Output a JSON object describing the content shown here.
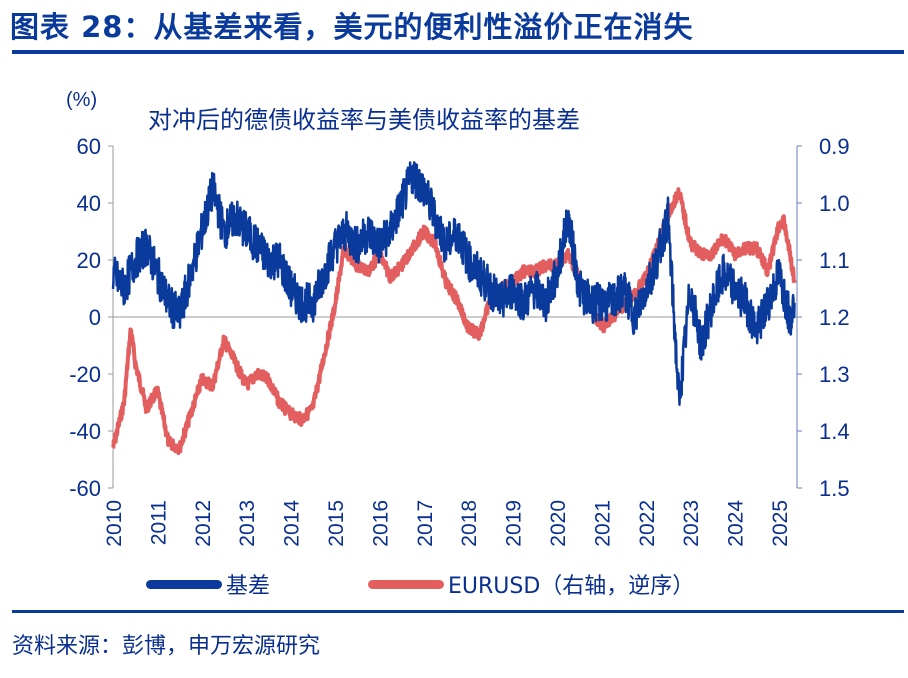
{
  "header": {
    "title": "图表 28：从基差来看，美元的便利性溢价正在消失"
  },
  "source": "资料来源：彭博，申万宏源研究",
  "chart_data": {
    "type": "line",
    "title": "对冲后的德债收益率与美债收益率的基差",
    "ylabel": "(%)",
    "ylim": [
      -60,
      60
    ],
    "yticks": [
      60,
      40,
      20,
      0,
      -20,
      -40,
      -60
    ],
    "y2lim": [
      0.9,
      1.5
    ],
    "y2_inverted": true,
    "y2ticks": [
      "0.9",
      "1.0",
      "1.1",
      "1.2",
      "1.3",
      "1.4",
      "1.5"
    ],
    "xticks": [
      "2010",
      "2011",
      "2012",
      "2013",
      "2014",
      "2015",
      "2016",
      "2017",
      "2018",
      "2019",
      "2020",
      "2021",
      "2022",
      "2023",
      "2024",
      "2025"
    ],
    "grid": false,
    "legend_position": "bottom",
    "colors": {
      "basis": "#0a3a9c",
      "eurusd": "#e35f5f"
    },
    "series": [
      {
        "name": "基差",
        "axis": "left",
        "x": [
          2010.0,
          2010.25,
          2010.5,
          2010.75,
          2011.0,
          2011.25,
          2011.5,
          2011.75,
          2012.0,
          2012.25,
          2012.5,
          2012.75,
          2013.0,
          2013.25,
          2013.5,
          2013.75,
          2014.0,
          2014.25,
          2014.5,
          2014.75,
          2015.0,
          2015.25,
          2015.5,
          2015.75,
          2016.0,
          2016.25,
          2016.5,
          2016.75,
          2017.0,
          2017.25,
          2017.5,
          2017.75,
          2018.0,
          2018.25,
          2018.5,
          2018.75,
          2019.0,
          2019.25,
          2019.5,
          2019.75,
          2020.0,
          2020.25,
          2020.5,
          2020.75,
          2021.0,
          2021.25,
          2021.5,
          2021.75,
          2022.0,
          2022.25,
          2022.5,
          2022.75,
          2023.0,
          2023.25,
          2023.5,
          2023.75,
          2024.0,
          2024.25,
          2024.5,
          2024.75,
          2025.0,
          2025.25,
          2025.35
        ],
        "values": [
          15,
          10,
          20,
          25,
          15,
          5,
          0,
          15,
          30,
          45,
          30,
          35,
          30,
          25,
          20,
          20,
          10,
          5,
          5,
          15,
          25,
          30,
          25,
          30,
          25,
          30,
          40,
          50,
          45,
          35,
          25,
          30,
          20,
          15,
          10,
          5,
          10,
          5,
          10,
          5,
          15,
          35,
          10,
          5,
          5,
          5,
          10,
          0,
          10,
          20,
          35,
          -30,
          10,
          -10,
          5,
          15,
          10,
          5,
          -5,
          5,
          15,
          0,
          5
        ]
      },
      {
        "name": "EURUSD（右轴，逆序）",
        "axis": "right",
        "x": [
          2010.0,
          2010.25,
          2010.4,
          2010.5,
          2010.75,
          2011.0,
          2011.25,
          2011.5,
          2011.75,
          2012.0,
          2012.25,
          2012.5,
          2012.75,
          2013.0,
          2013.25,
          2013.5,
          2013.75,
          2014.0,
          2014.25,
          2014.5,
          2014.75,
          2015.0,
          2015.2,
          2015.5,
          2015.75,
          2016.0,
          2016.25,
          2016.5,
          2016.75,
          2017.0,
          2017.25,
          2017.5,
          2017.75,
          2018.0,
          2018.25,
          2018.5,
          2018.75,
          2019.0,
          2019.25,
          2019.5,
          2019.75,
          2020.0,
          2020.25,
          2020.5,
          2020.75,
          2021.0,
          2021.25,
          2021.5,
          2021.75,
          2022.0,
          2022.25,
          2022.5,
          2022.75,
          2023.0,
          2023.25,
          2023.5,
          2023.75,
          2024.0,
          2024.25,
          2024.5,
          2024.75,
          2025.0,
          2025.1,
          2025.25,
          2025.35
        ],
        "values": [
          1.43,
          1.35,
          1.22,
          1.28,
          1.36,
          1.33,
          1.42,
          1.43,
          1.37,
          1.31,
          1.32,
          1.24,
          1.28,
          1.32,
          1.3,
          1.31,
          1.35,
          1.37,
          1.38,
          1.36,
          1.27,
          1.18,
          1.08,
          1.11,
          1.12,
          1.09,
          1.13,
          1.11,
          1.08,
          1.05,
          1.07,
          1.14,
          1.17,
          1.22,
          1.23,
          1.17,
          1.15,
          1.14,
          1.12,
          1.12,
          1.11,
          1.11,
          1.09,
          1.13,
          1.18,
          1.22,
          1.2,
          1.18,
          1.16,
          1.13,
          1.08,
          1.02,
          0.98,
          1.07,
          1.09,
          1.09,
          1.06,
          1.09,
          1.08,
          1.08,
          1.12,
          1.04,
          1.03,
          1.09,
          1.14
        ]
      }
    ]
  }
}
